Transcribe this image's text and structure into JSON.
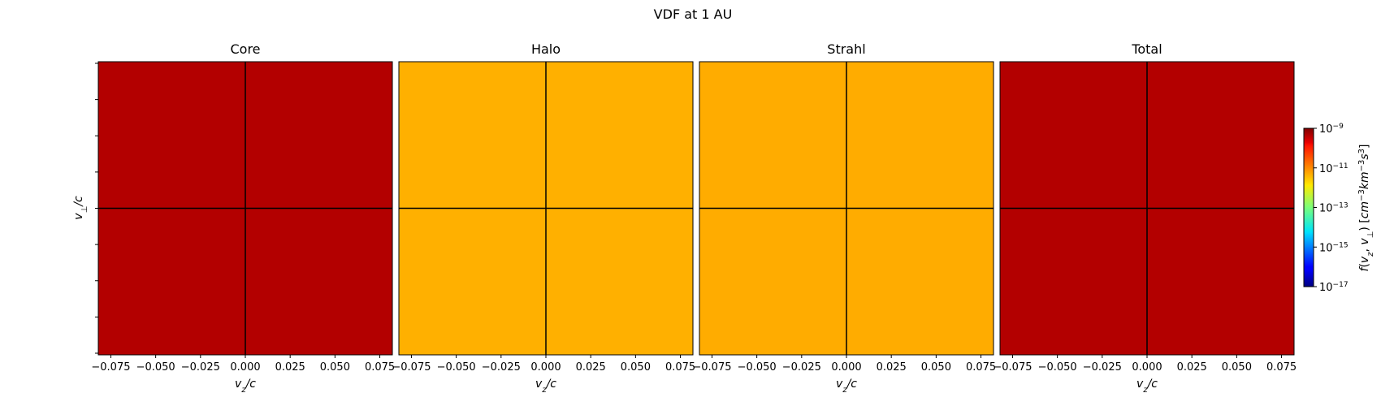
{
  "chart_data": {
    "type": "heatmap",
    "title": "VDF at 1 AU",
    "panels": [
      {
        "title": "Core",
        "fill_color": "#b30000",
        "log10_value": -9.3
      },
      {
        "title": "Halo",
        "fill_color": "#ffb000",
        "log10_value": -11.2
      },
      {
        "title": "Strahl",
        "fill_color": "#ffac00",
        "log10_value": -11.15
      },
      {
        "title": "Total",
        "fill_color": "#b30000",
        "log10_value": -9.3
      }
    ],
    "xlabel_sub": "z",
    "xlabel_rest": "/c",
    "ylabel_sub": "⊥",
    "ylabel_rest": "/c",
    "xlim": [
      -0.082,
      0.082
    ],
    "x_ticks": [
      "−0.075",
      "−0.050",
      "−0.025",
      "0.000",
      "0.025",
      "0.050",
      "0.075"
    ],
    "x_tick_values": [
      -0.075,
      -0.05,
      -0.025,
      0.0,
      0.025,
      0.05,
      0.075
    ],
    "y_tick_count": 9,
    "crosshair": {
      "x": 0.0,
      "y": 0.0
    },
    "colorbar": {
      "colormap": "jet",
      "log_scale": true,
      "range_exp": [
        -17,
        -9
      ],
      "tick_exps": [
        "−9",
        "−11",
        "−13",
        "−15",
        "−17"
      ],
      "tick_values": [
        -9,
        -11,
        -13,
        -15,
        -17
      ],
      "tick_base": "10",
      "label": "f(v_z, v_⊥) [cm^-3 km^-3 s^3]"
    }
  }
}
